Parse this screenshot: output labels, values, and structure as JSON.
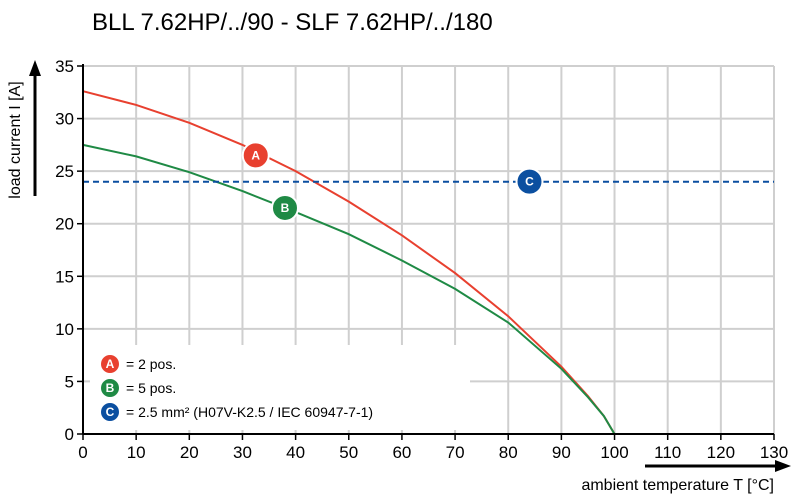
{
  "colors": {
    "A": "#e8402f",
    "B": "#1f8a45",
    "C": "#0b4fa0"
  },
  "chart_data": {
    "type": "line",
    "title": "BLL 7.62HP/../90 - SLF 7.62HP/../180",
    "xlabel": "ambient temperature T [°C]",
    "ylabel": "load current I [A]",
    "xlim": [
      0,
      130
    ],
    "ylim": [
      0,
      35
    ],
    "xticks": [
      0,
      10,
      20,
      30,
      40,
      50,
      60,
      70,
      80,
      90,
      100,
      110,
      120,
      130
    ],
    "yticks": [
      0,
      5,
      10,
      15,
      20,
      25,
      30,
      35
    ],
    "grid": true,
    "series": [
      {
        "name": "A",
        "label": "= 2 pos.",
        "color": "#e8402f",
        "style": "solid",
        "x": [
          0,
          10,
          20,
          30,
          40,
          50,
          60,
          70,
          80,
          90,
          95,
          98,
          100
        ],
        "y": [
          32.6,
          31.3,
          29.6,
          27.5,
          25.0,
          22.1,
          18.9,
          15.3,
          11.2,
          6.4,
          3.6,
          1.7,
          0
        ],
        "marker": {
          "x": 32.5,
          "y": 26.5
        }
      },
      {
        "name": "B",
        "label": "= 5 pos.",
        "color": "#1f8a45",
        "style": "solid",
        "x": [
          0,
          10,
          20,
          30,
          40,
          50,
          60,
          70,
          80,
          90,
          95,
          98,
          100
        ],
        "y": [
          27.5,
          26.4,
          24.9,
          23.1,
          21.1,
          19.0,
          16.5,
          13.8,
          10.6,
          6.2,
          3.5,
          1.7,
          0
        ],
        "marker": {
          "x": 38,
          "y": 21.5
        }
      },
      {
        "name": "C",
        "label": "= 2.5 mm² (H07V-K2.5 / IEC 60947-7-1)",
        "color": "#0b4fa0",
        "style": "dashed",
        "x": [
          0,
          130
        ],
        "y": [
          24,
          24
        ],
        "marker": {
          "x": 84,
          "y": 24
        }
      }
    ]
  }
}
